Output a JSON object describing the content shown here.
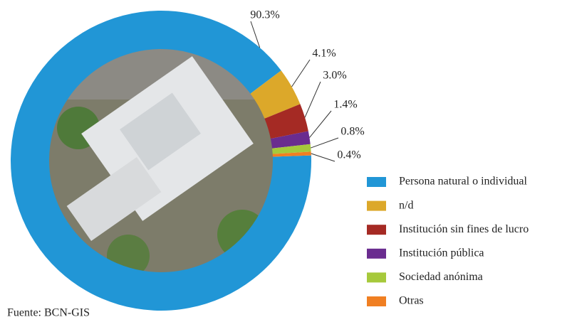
{
  "chart_data": {
    "type": "pie",
    "donut": true,
    "categories": [
      "Persona natural o individual",
      "n/d",
      "Institución sin fines de lucro",
      "Institución pública",
      "Sociedad anónima",
      "Otras"
    ],
    "values": [
      90.3,
      4.1,
      3.0,
      1.4,
      0.8,
      0.4
    ],
    "value_labels": [
      "90.3%",
      "4.1%",
      "3.0%",
      "1.4%",
      "0.8%",
      "0.4%"
    ],
    "colors": [
      "#2196d6",
      "#dca82a",
      "#a52a24",
      "#6a2c8f",
      "#a6c93b",
      "#f07f22"
    ],
    "source": "Fuente: BCN-GIS"
  }
}
